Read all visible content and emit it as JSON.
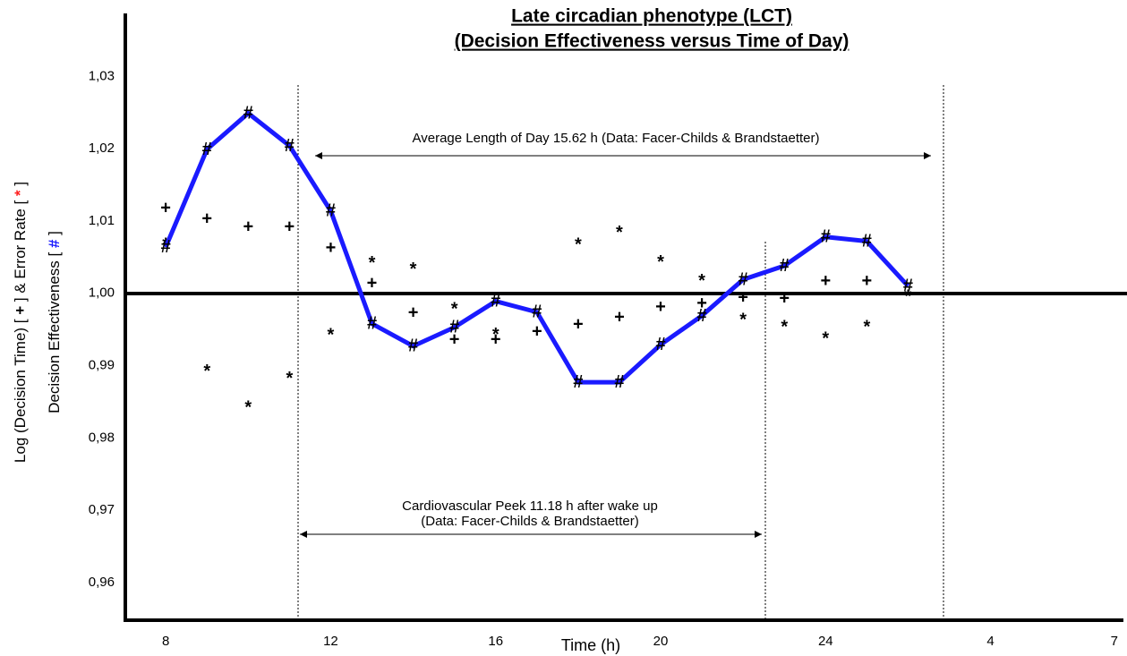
{
  "chart_data": {
    "type": "scatter",
    "title": [
      "Late circadian phenotype (LCT)",
      "(Decision Effectiveness versus Time of Day)"
    ],
    "xlabel": "Time (h)",
    "ylabel": [
      [
        "Log (Decision Time) [ ",
        "+",
        " ] & Error Rate [ ",
        "*",
        " ]"
      ],
      [
        "Decision Effectiveness [ ",
        "#",
        " ]"
      ]
    ],
    "annotations": [
      "Average Length of Day 15.62 h (Data: Facer-Childs & Brandstaetter)",
      "Cardiovascular Peek 11.18 h after wake up",
      "(Data: Facer-Childs & Brandstaetter)"
    ],
    "xlim": [
      7.02,
      31.2
    ],
    "xticks": [
      8,
      12,
      16,
      20,
      24,
      {
        "value": 28,
        "label": "4"
      },
      {
        "value": 31,
        "label": "7"
      }
    ],
    "ylim": [
      0.9548,
      1.0387
    ],
    "yticks": [
      {
        "value": 0.96,
        "label": "0,96"
      },
      {
        "value": 0.97,
        "label": "0,97"
      },
      {
        "value": 0.98,
        "label": "0,98"
      },
      {
        "value": 0.99,
        "label": "0,99"
      },
      {
        "value": 1.0,
        "label": "1,00"
      },
      {
        "value": 1.01,
        "label": "1,01"
      },
      {
        "value": 1.02,
        "label": "1,02"
      },
      {
        "value": 1.03,
        "label": "1,03"
      }
    ],
    "x": [
      8,
      9,
      10,
      11,
      12,
      13,
      14,
      15,
      16,
      17,
      18,
      19,
      20,
      21,
      22,
      23,
      24,
      25,
      26
    ],
    "series": [
      {
        "marker": "+",
        "color": "#000000",
        "line": false,
        "values": [
          1.0118,
          1.0103,
          1.0092,
          1.0092,
          1.0063,
          1.0014,
          0.9973,
          0.9936,
          0.9936,
          0.9947,
          0.9957,
          0.9967,
          0.9981,
          0.9986,
          0.9994,
          0.9993,
          1.0017,
          1.0017,
          null
        ]
      },
      {
        "marker": "*",
        "color": "#ff2020",
        "line": false,
        "values": [
          1.0072,
          0.9897,
          0.9847,
          0.9887,
          0.9947,
          1.0047,
          1.0038,
          0.9983,
          0.9948,
          null,
          1.0072,
          1.0089,
          1.0048,
          1.0022,
          0.9968,
          0.9958,
          0.9942,
          0.9958,
          1.0
        ]
      },
      {
        "marker": "#",
        "color": "#1a1aff",
        "line": true,
        "values": [
          1.0064,
          1.0199,
          1.0249,
          1.0204,
          1.0114,
          0.9958,
          0.9927,
          0.9953,
          0.9989,
          0.9974,
          0.9877,
          0.9877,
          0.9929,
          0.9969,
          1.0019,
          1.0038,
          1.0078,
          1.0072,
          1.001
        ]
      }
    ]
  }
}
